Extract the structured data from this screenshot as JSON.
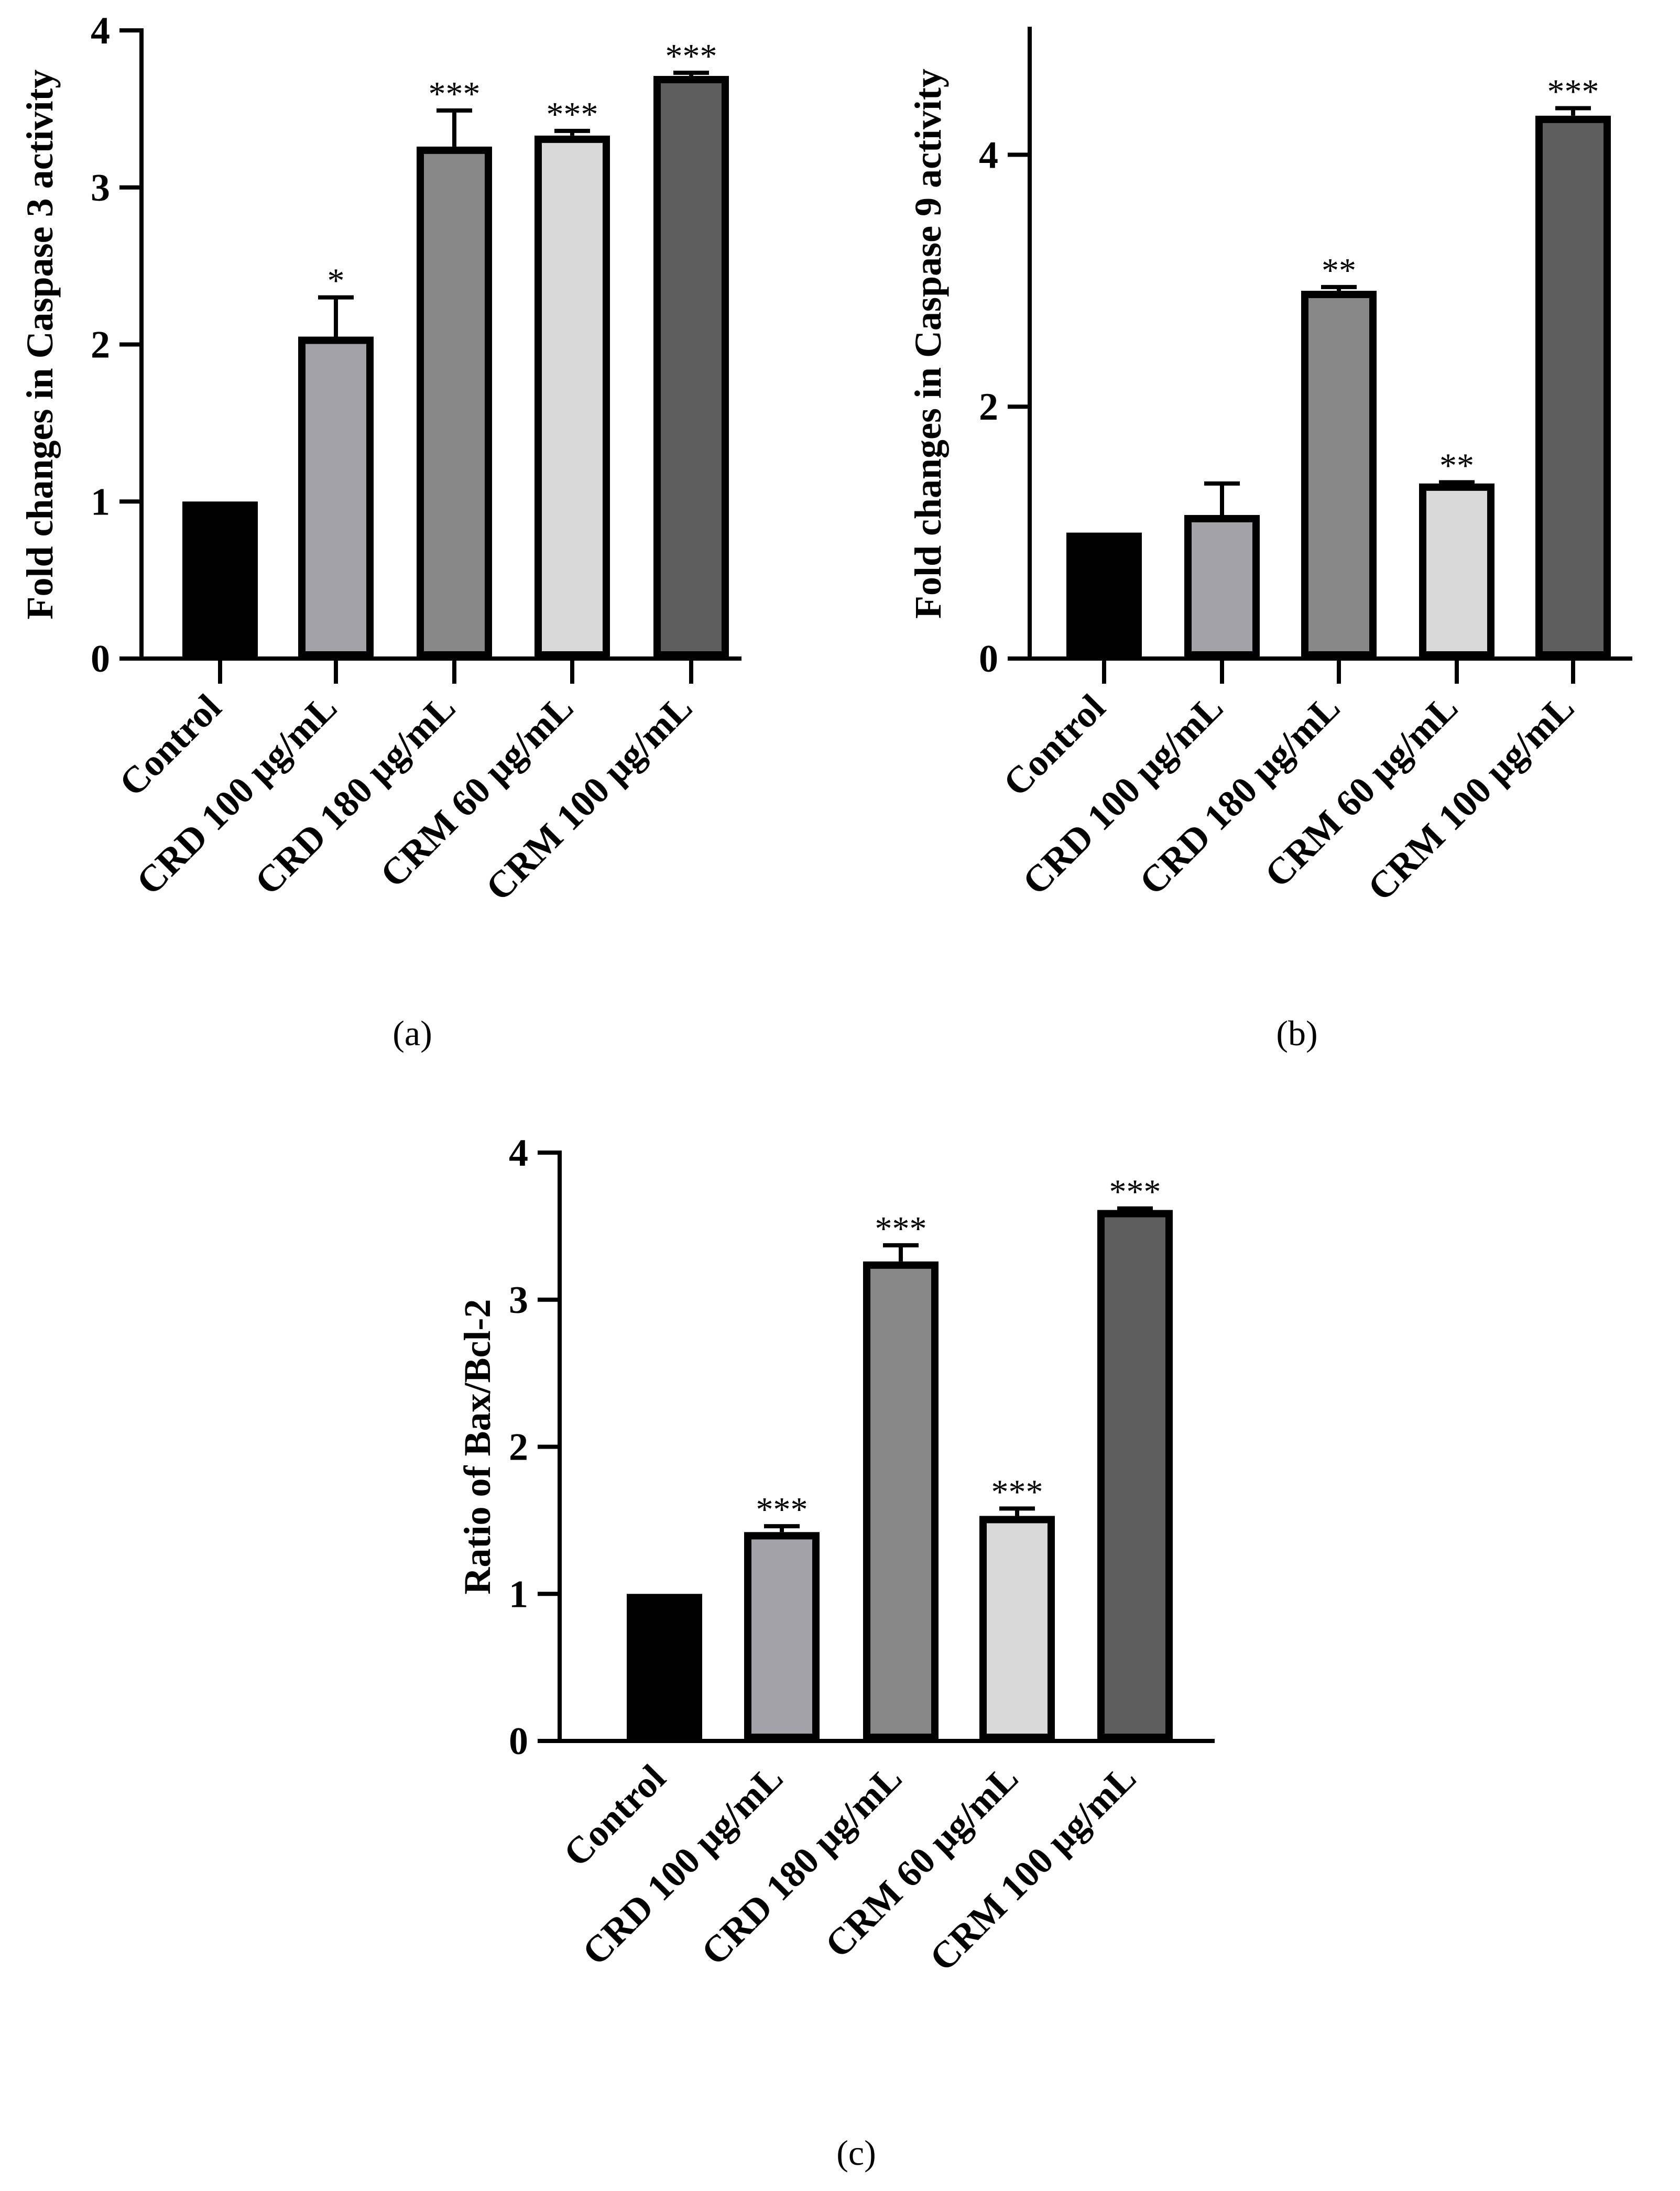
{
  "colors": {
    "bar_colors": [
      "#000000",
      "#a2a2a8",
      "#878787",
      "#d9d9d9",
      "#5e5e5e"
    ],
    "outline": "#000000"
  },
  "chart_data": [
    {
      "type": "bar",
      "panel_label": "(a)",
      "categories": [
        "Control",
        "CRD 100 μg/mL",
        "CRD 180 μg/mL",
        "CRM 60  μg/mL",
        "CRM 100 μg/mL"
      ],
      "values": [
        1.0,
        2.05,
        3.26,
        3.33,
        3.71
      ],
      "errors": [
        0.0,
        0.25,
        0.23,
        0.03,
        0.02
      ],
      "significance": [
        "",
        "*",
        "***",
        "***",
        "***"
      ],
      "title": "",
      "xlabel": "",
      "ylabel": "Fold changes in Caspase 3 activity",
      "ylim": [
        0,
        4
      ],
      "yticks": [
        0,
        1,
        2,
        3,
        4
      ],
      "ytick_labels": [
        "0",
        "1",
        "2",
        "3",
        "4"
      ],
      "grid": false
    },
    {
      "type": "bar",
      "panel_label": "(b)",
      "categories": [
        "Control",
        "CRD 100 μg/mL",
        "CRD 180 μg/mL",
        "CRM 60 μg/mL",
        "CRM 100 μg/mL"
      ],
      "values": [
        1.0,
        1.14,
        2.92,
        1.39,
        4.31
      ],
      "errors": [
        0.0,
        0.25,
        0.03,
        0.01,
        0.06
      ],
      "significance": [
        "",
        "",
        "**",
        "**",
        "***"
      ],
      "title": "",
      "xlabel": "",
      "ylabel": "Fold changes in Caspase 9 activity",
      "ylim": [
        0,
        5
      ],
      "yticks": [
        0,
        2,
        4
      ],
      "ytick_labels": [
        "0",
        "2",
        "4"
      ],
      "grid": false
    },
    {
      "type": "bar",
      "panel_label": "(c)",
      "categories": [
        "Control",
        "CRD 100 μg/mL",
        "CRD 180 μg/mL",
        "CRM 60 μg/mL",
        "CRM 100 μg/mL"
      ],
      "values": [
        1.0,
        1.42,
        3.26,
        1.53,
        3.61
      ],
      "errors": [
        0.0,
        0.04,
        0.11,
        0.05,
        0.01
      ],
      "significance": [
        "",
        "***",
        "***",
        "***",
        "***"
      ],
      "title": "",
      "xlabel": "",
      "ylabel": "Ratio of Bax/Bcl-2",
      "ylim": [
        0,
        4
      ],
      "yticks": [
        0,
        1,
        2,
        3,
        4
      ],
      "ytick_labels": [
        "0",
        "1",
        "2",
        "3",
        "4"
      ],
      "grid": false
    }
  ]
}
